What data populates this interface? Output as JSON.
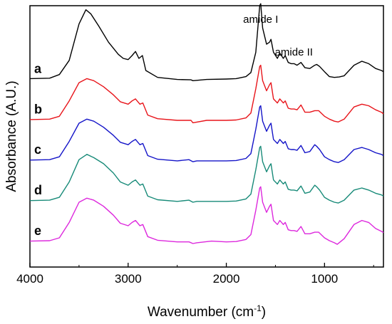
{
  "chart_data": {
    "type": "line",
    "xlabel": "Wavenumber (cm",
    "xlabel_sup": "-1",
    "xlabel_end": ")",
    "ylabel": "Absorbance (A.U.)",
    "xlim": [
      4000,
      400
    ],
    "x_reversed": true,
    "y_ticks_shown": false,
    "x_ticks": [
      4000,
      3000,
      2000,
      1000
    ],
    "x_tick_labels": [
      "4000",
      "3000",
      "2000",
      "1000"
    ],
    "annotations": [
      {
        "text": "amide I",
        "x": 1650
      },
      {
        "text": "amide II",
        "x": 1545
      }
    ],
    "series": [
      {
        "name": "a",
        "color": "#000000",
        "offset": 4.0,
        "points": [
          [
            4000,
            0.05
          ],
          [
            3800,
            0.06
          ],
          [
            3700,
            0.15
          ],
          [
            3600,
            0.5
          ],
          [
            3500,
            1.4
          ],
          [
            3430,
            1.75
          ],
          [
            3380,
            1.65
          ],
          [
            3300,
            1.35
          ],
          [
            3200,
            0.95
          ],
          [
            3100,
            0.65
          ],
          [
            3050,
            0.55
          ],
          [
            3000,
            0.52
          ],
          [
            2960,
            0.62
          ],
          [
            2925,
            0.72
          ],
          [
            2890,
            0.55
          ],
          [
            2855,
            0.62
          ],
          [
            2820,
            0.25
          ],
          [
            2700,
            0.08
          ],
          [
            2500,
            0.03
          ],
          [
            2360,
            0.02
          ],
          [
            2340,
            0.0
          ],
          [
            2200,
            0.03
          ],
          [
            2000,
            0.04
          ],
          [
            1900,
            0.05
          ],
          [
            1800,
            0.1
          ],
          [
            1750,
            0.2
          ],
          [
            1700,
            0.7
          ],
          [
            1660,
            1.85
          ],
          [
            1650,
            1.9
          ],
          [
            1630,
            1.3
          ],
          [
            1590,
            0.9
          ],
          [
            1560,
            0.95
          ],
          [
            1545,
            1.02
          ],
          [
            1520,
            0.7
          ],
          [
            1480,
            0.55
          ],
          [
            1455,
            0.68
          ],
          [
            1420,
            0.55
          ],
          [
            1400,
            0.62
          ],
          [
            1370,
            0.45
          ],
          [
            1340,
            0.42
          ],
          [
            1310,
            0.42
          ],
          [
            1280,
            0.38
          ],
          [
            1240,
            0.45
          ],
          [
            1200,
            0.32
          ],
          [
            1150,
            0.3
          ],
          [
            1100,
            0.38
          ],
          [
            1080,
            0.4
          ],
          [
            1050,
            0.35
          ],
          [
            1000,
            0.22
          ],
          [
            950,
            0.1
          ],
          [
            900,
            0.08
          ],
          [
            850,
            0.09
          ],
          [
            800,
            0.12
          ],
          [
            700,
            0.38
          ],
          [
            620,
            0.48
          ],
          [
            550,
            0.42
          ],
          [
            480,
            0.3
          ],
          [
            420,
            0.25
          ],
          [
            400,
            0.22
          ]
        ]
      },
      {
        "name": "b",
        "color": "#e8141a",
        "offset": 3.0,
        "points": [
          [
            4000,
            0.04
          ],
          [
            3800,
            0.05
          ],
          [
            3700,
            0.12
          ],
          [
            3600,
            0.5
          ],
          [
            3500,
            0.95
          ],
          [
            3420,
            1.05
          ],
          [
            3350,
            1.0
          ],
          [
            3250,
            0.85
          ],
          [
            3150,
            0.65
          ],
          [
            3080,
            0.48
          ],
          [
            3000,
            0.42
          ],
          [
            2960,
            0.5
          ],
          [
            2925,
            0.55
          ],
          [
            2880,
            0.42
          ],
          [
            2850,
            0.45
          ],
          [
            2800,
            0.15
          ],
          [
            2700,
            0.06
          ],
          [
            2500,
            0.02
          ],
          [
            2360,
            0.02
          ],
          [
            2340,
            -0.04
          ],
          [
            2200,
            0.02
          ],
          [
            2000,
            0.02
          ],
          [
            1900,
            0.03
          ],
          [
            1800,
            0.08
          ],
          [
            1750,
            0.2
          ],
          [
            1700,
            0.8
          ],
          [
            1660,
            1.35
          ],
          [
            1650,
            1.38
          ],
          [
            1630,
            1.0
          ],
          [
            1590,
            0.75
          ],
          [
            1560,
            0.9
          ],
          [
            1545,
            0.95
          ],
          [
            1520,
            0.55
          ],
          [
            1480,
            0.45
          ],
          [
            1455,
            0.55
          ],
          [
            1420,
            0.45
          ],
          [
            1400,
            0.5
          ],
          [
            1370,
            0.32
          ],
          [
            1340,
            0.3
          ],
          [
            1310,
            0.3
          ],
          [
            1280,
            0.28
          ],
          [
            1240,
            0.4
          ],
          [
            1200,
            0.22
          ],
          [
            1150,
            0.22
          ],
          [
            1100,
            0.26
          ],
          [
            1060,
            0.26
          ],
          [
            1000,
            0.12
          ],
          [
            950,
            0.05
          ],
          [
            900,
            0.0
          ],
          [
            860,
            -0.02
          ],
          [
            800,
            0.05
          ],
          [
            700,
            0.35
          ],
          [
            620,
            0.42
          ],
          [
            550,
            0.38
          ],
          [
            480,
            0.28
          ],
          [
            420,
            0.22
          ],
          [
            400,
            0.18
          ]
        ]
      },
      {
        "name": "c",
        "color": "#1414c8",
        "offset": 2.0,
        "points": [
          [
            4000,
            0.04
          ],
          [
            3800,
            0.05
          ],
          [
            3700,
            0.12
          ],
          [
            3600,
            0.5
          ],
          [
            3500,
            0.95
          ],
          [
            3420,
            1.05
          ],
          [
            3350,
            1.0
          ],
          [
            3250,
            0.85
          ],
          [
            3150,
            0.65
          ],
          [
            3080,
            0.48
          ],
          [
            3000,
            0.42
          ],
          [
            2960,
            0.5
          ],
          [
            2925,
            0.55
          ],
          [
            2880,
            0.42
          ],
          [
            2850,
            0.45
          ],
          [
            2800,
            0.15
          ],
          [
            2700,
            0.06
          ],
          [
            2500,
            0.02
          ],
          [
            2380,
            0.05
          ],
          [
            2340,
            0.0
          ],
          [
            2300,
            0.02
          ],
          [
            2200,
            0.02
          ],
          [
            2000,
            0.02
          ],
          [
            1900,
            0.03
          ],
          [
            1800,
            0.08
          ],
          [
            1750,
            0.2
          ],
          [
            1700,
            0.8
          ],
          [
            1660,
            1.35
          ],
          [
            1650,
            1.38
          ],
          [
            1630,
            1.0
          ],
          [
            1590,
            0.75
          ],
          [
            1560,
            0.9
          ],
          [
            1545,
            0.95
          ],
          [
            1520,
            0.55
          ],
          [
            1480,
            0.45
          ],
          [
            1455,
            0.55
          ],
          [
            1420,
            0.45
          ],
          [
            1400,
            0.5
          ],
          [
            1370,
            0.32
          ],
          [
            1340,
            0.3
          ],
          [
            1310,
            0.3
          ],
          [
            1280,
            0.28
          ],
          [
            1240,
            0.4
          ],
          [
            1200,
            0.22
          ],
          [
            1150,
            0.25
          ],
          [
            1100,
            0.42
          ],
          [
            1080,
            0.38
          ],
          [
            1050,
            0.3
          ],
          [
            1000,
            0.12
          ],
          [
            950,
            0.05
          ],
          [
            900,
            0.0
          ],
          [
            860,
            -0.02
          ],
          [
            800,
            0.05
          ],
          [
            700,
            0.3
          ],
          [
            620,
            0.35
          ],
          [
            550,
            0.3
          ],
          [
            480,
            0.22
          ],
          [
            420,
            0.18
          ],
          [
            400,
            0.15
          ]
        ]
      },
      {
        "name": "d",
        "color": "#178a78",
        "offset": 1.0,
        "points": [
          [
            4000,
            0.04
          ],
          [
            3800,
            0.05
          ],
          [
            3700,
            0.12
          ],
          [
            3600,
            0.5
          ],
          [
            3500,
            1.05
          ],
          [
            3420,
            1.18
          ],
          [
            3350,
            1.1
          ],
          [
            3250,
            0.95
          ],
          [
            3150,
            0.72
          ],
          [
            3080,
            0.5
          ],
          [
            3000,
            0.42
          ],
          [
            2960,
            0.5
          ],
          [
            2925,
            0.55
          ],
          [
            2880,
            0.42
          ],
          [
            2850,
            0.45
          ],
          [
            2800,
            0.15
          ],
          [
            2700,
            0.06
          ],
          [
            2500,
            0.02
          ],
          [
            2380,
            0.05
          ],
          [
            2340,
            0.0
          ],
          [
            2300,
            0.02
          ],
          [
            2200,
            0.02
          ],
          [
            2000,
            0.02
          ],
          [
            1900,
            0.03
          ],
          [
            1800,
            0.08
          ],
          [
            1750,
            0.2
          ],
          [
            1700,
            0.8
          ],
          [
            1660,
            1.35
          ],
          [
            1650,
            1.38
          ],
          [
            1630,
            1.0
          ],
          [
            1590,
            0.75
          ],
          [
            1560,
            0.9
          ],
          [
            1545,
            0.95
          ],
          [
            1520,
            0.55
          ],
          [
            1480,
            0.45
          ],
          [
            1455,
            0.55
          ],
          [
            1420,
            0.45
          ],
          [
            1400,
            0.5
          ],
          [
            1370,
            0.32
          ],
          [
            1340,
            0.3
          ],
          [
            1310,
            0.3
          ],
          [
            1280,
            0.28
          ],
          [
            1240,
            0.4
          ],
          [
            1200,
            0.22
          ],
          [
            1150,
            0.25
          ],
          [
            1100,
            0.42
          ],
          [
            1080,
            0.38
          ],
          [
            1050,
            0.3
          ],
          [
            1000,
            0.12
          ],
          [
            950,
            0.05
          ],
          [
            900,
            0.0
          ],
          [
            860,
            -0.02
          ],
          [
            800,
            0.05
          ],
          [
            700,
            0.3
          ],
          [
            620,
            0.35
          ],
          [
            550,
            0.3
          ],
          [
            480,
            0.22
          ],
          [
            420,
            0.18
          ],
          [
            400,
            0.15
          ]
        ]
      },
      {
        "name": "e",
        "color": "#dd28dd",
        "offset": 0.0,
        "points": [
          [
            4000,
            0.04
          ],
          [
            3800,
            0.05
          ],
          [
            3700,
            0.12
          ],
          [
            3600,
            0.5
          ],
          [
            3500,
            1.0
          ],
          [
            3420,
            1.1
          ],
          [
            3350,
            1.05
          ],
          [
            3250,
            0.9
          ],
          [
            3150,
            0.68
          ],
          [
            3080,
            0.48
          ],
          [
            3000,
            0.42
          ],
          [
            2960,
            0.5
          ],
          [
            2925,
            0.55
          ],
          [
            2880,
            0.42
          ],
          [
            2850,
            0.45
          ],
          [
            2800,
            0.15
          ],
          [
            2700,
            0.06
          ],
          [
            2500,
            0.02
          ],
          [
            2380,
            0.02
          ],
          [
            2340,
            -0.02
          ],
          [
            2300,
            0.0
          ],
          [
            2150,
            0.04
          ],
          [
            2000,
            0.02
          ],
          [
            1900,
            0.03
          ],
          [
            1800,
            0.08
          ],
          [
            1750,
            0.2
          ],
          [
            1700,
            0.8
          ],
          [
            1660,
            1.35
          ],
          [
            1650,
            1.38
          ],
          [
            1630,
            1.0
          ],
          [
            1590,
            0.75
          ],
          [
            1560,
            0.9
          ],
          [
            1545,
            0.95
          ],
          [
            1520,
            0.55
          ],
          [
            1480,
            0.45
          ],
          [
            1455,
            0.55
          ],
          [
            1420,
            0.45
          ],
          [
            1400,
            0.5
          ],
          [
            1370,
            0.32
          ],
          [
            1340,
            0.3
          ],
          [
            1310,
            0.3
          ],
          [
            1280,
            0.28
          ],
          [
            1240,
            0.4
          ],
          [
            1200,
            0.22
          ],
          [
            1150,
            0.22
          ],
          [
            1100,
            0.26
          ],
          [
            1060,
            0.26
          ],
          [
            1000,
            0.12
          ],
          [
            950,
            0.05
          ],
          [
            900,
            0.0
          ],
          [
            870,
            -0.04
          ],
          [
            800,
            0.1
          ],
          [
            700,
            0.45
          ],
          [
            620,
            0.55
          ],
          [
            550,
            0.5
          ],
          [
            480,
            0.35
          ],
          [
            420,
            0.28
          ],
          [
            400,
            0.25
          ]
        ]
      }
    ]
  }
}
